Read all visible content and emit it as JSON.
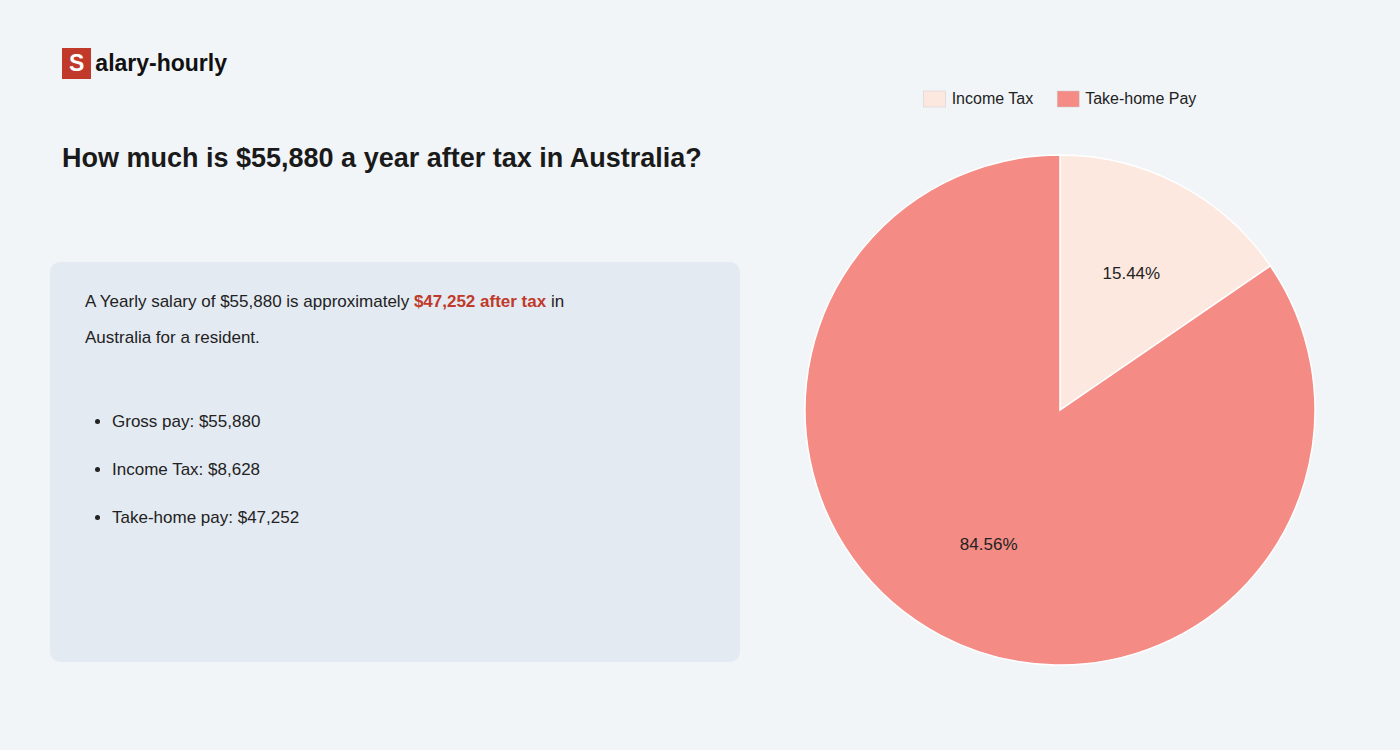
{
  "chart_data": {
    "type": "pie",
    "title": "How much is $55,880 a year after tax in Australia?",
    "annotations": [
      {
        "text": "S",
        "color": "#c0392b"
      },
      {
        "text": "alary-hourly"
      },
      {
        "text": "A Yearly salary of $55,880 is approximately "
      },
      {
        "text": "$47,252 after tax",
        "color": "#c0392b"
      },
      {
        "text": " in"
      },
      {
        "text": "Australia for a resident."
      },
      {
        "text": "Gross pay: $55,880"
      },
      {
        "text": "Income Tax: $8,628"
      },
      {
        "text": "Take-home pay: $47,252"
      }
    ],
    "categories": [
      "Income Tax",
      "Take-home Pay"
    ],
    "values": [
      15.44,
      84.56
    ],
    "value_labels": [
      "15.44%",
      "84.56%"
    ],
    "colors": [
      "#fce8df",
      "#f48b85"
    ],
    "data_labels": true,
    "legend": "top"
  }
}
